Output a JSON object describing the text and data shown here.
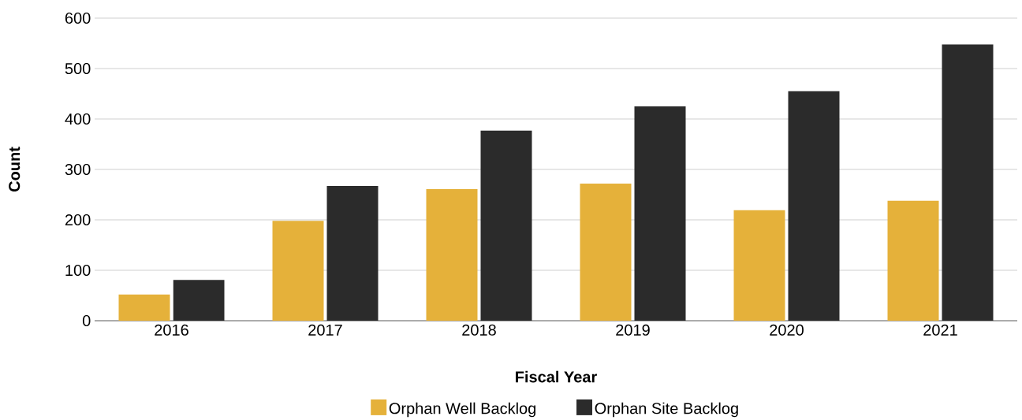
{
  "chart_data": {
    "type": "bar",
    "xlabel": "Fiscal Year",
    "ylabel": "Count",
    "categories": [
      "2016",
      "2017",
      "2018",
      "2019",
      "2020",
      "2021"
    ],
    "series": [
      {
        "name": "Orphan Well Backlog",
        "color": "#e5b13a",
        "values": [
          52,
          198,
          261,
          272,
          219,
          238
        ]
      },
      {
        "name": "Orphan Site Backlog",
        "color": "#2b2b2b",
        "values": [
          81,
          267,
          377,
          425,
          455,
          548
        ]
      }
    ],
    "ylim": [
      0,
      600
    ],
    "yticks": [
      0,
      100,
      200,
      300,
      400,
      500,
      600
    ],
    "grid": "y",
    "legend": "bottom"
  }
}
